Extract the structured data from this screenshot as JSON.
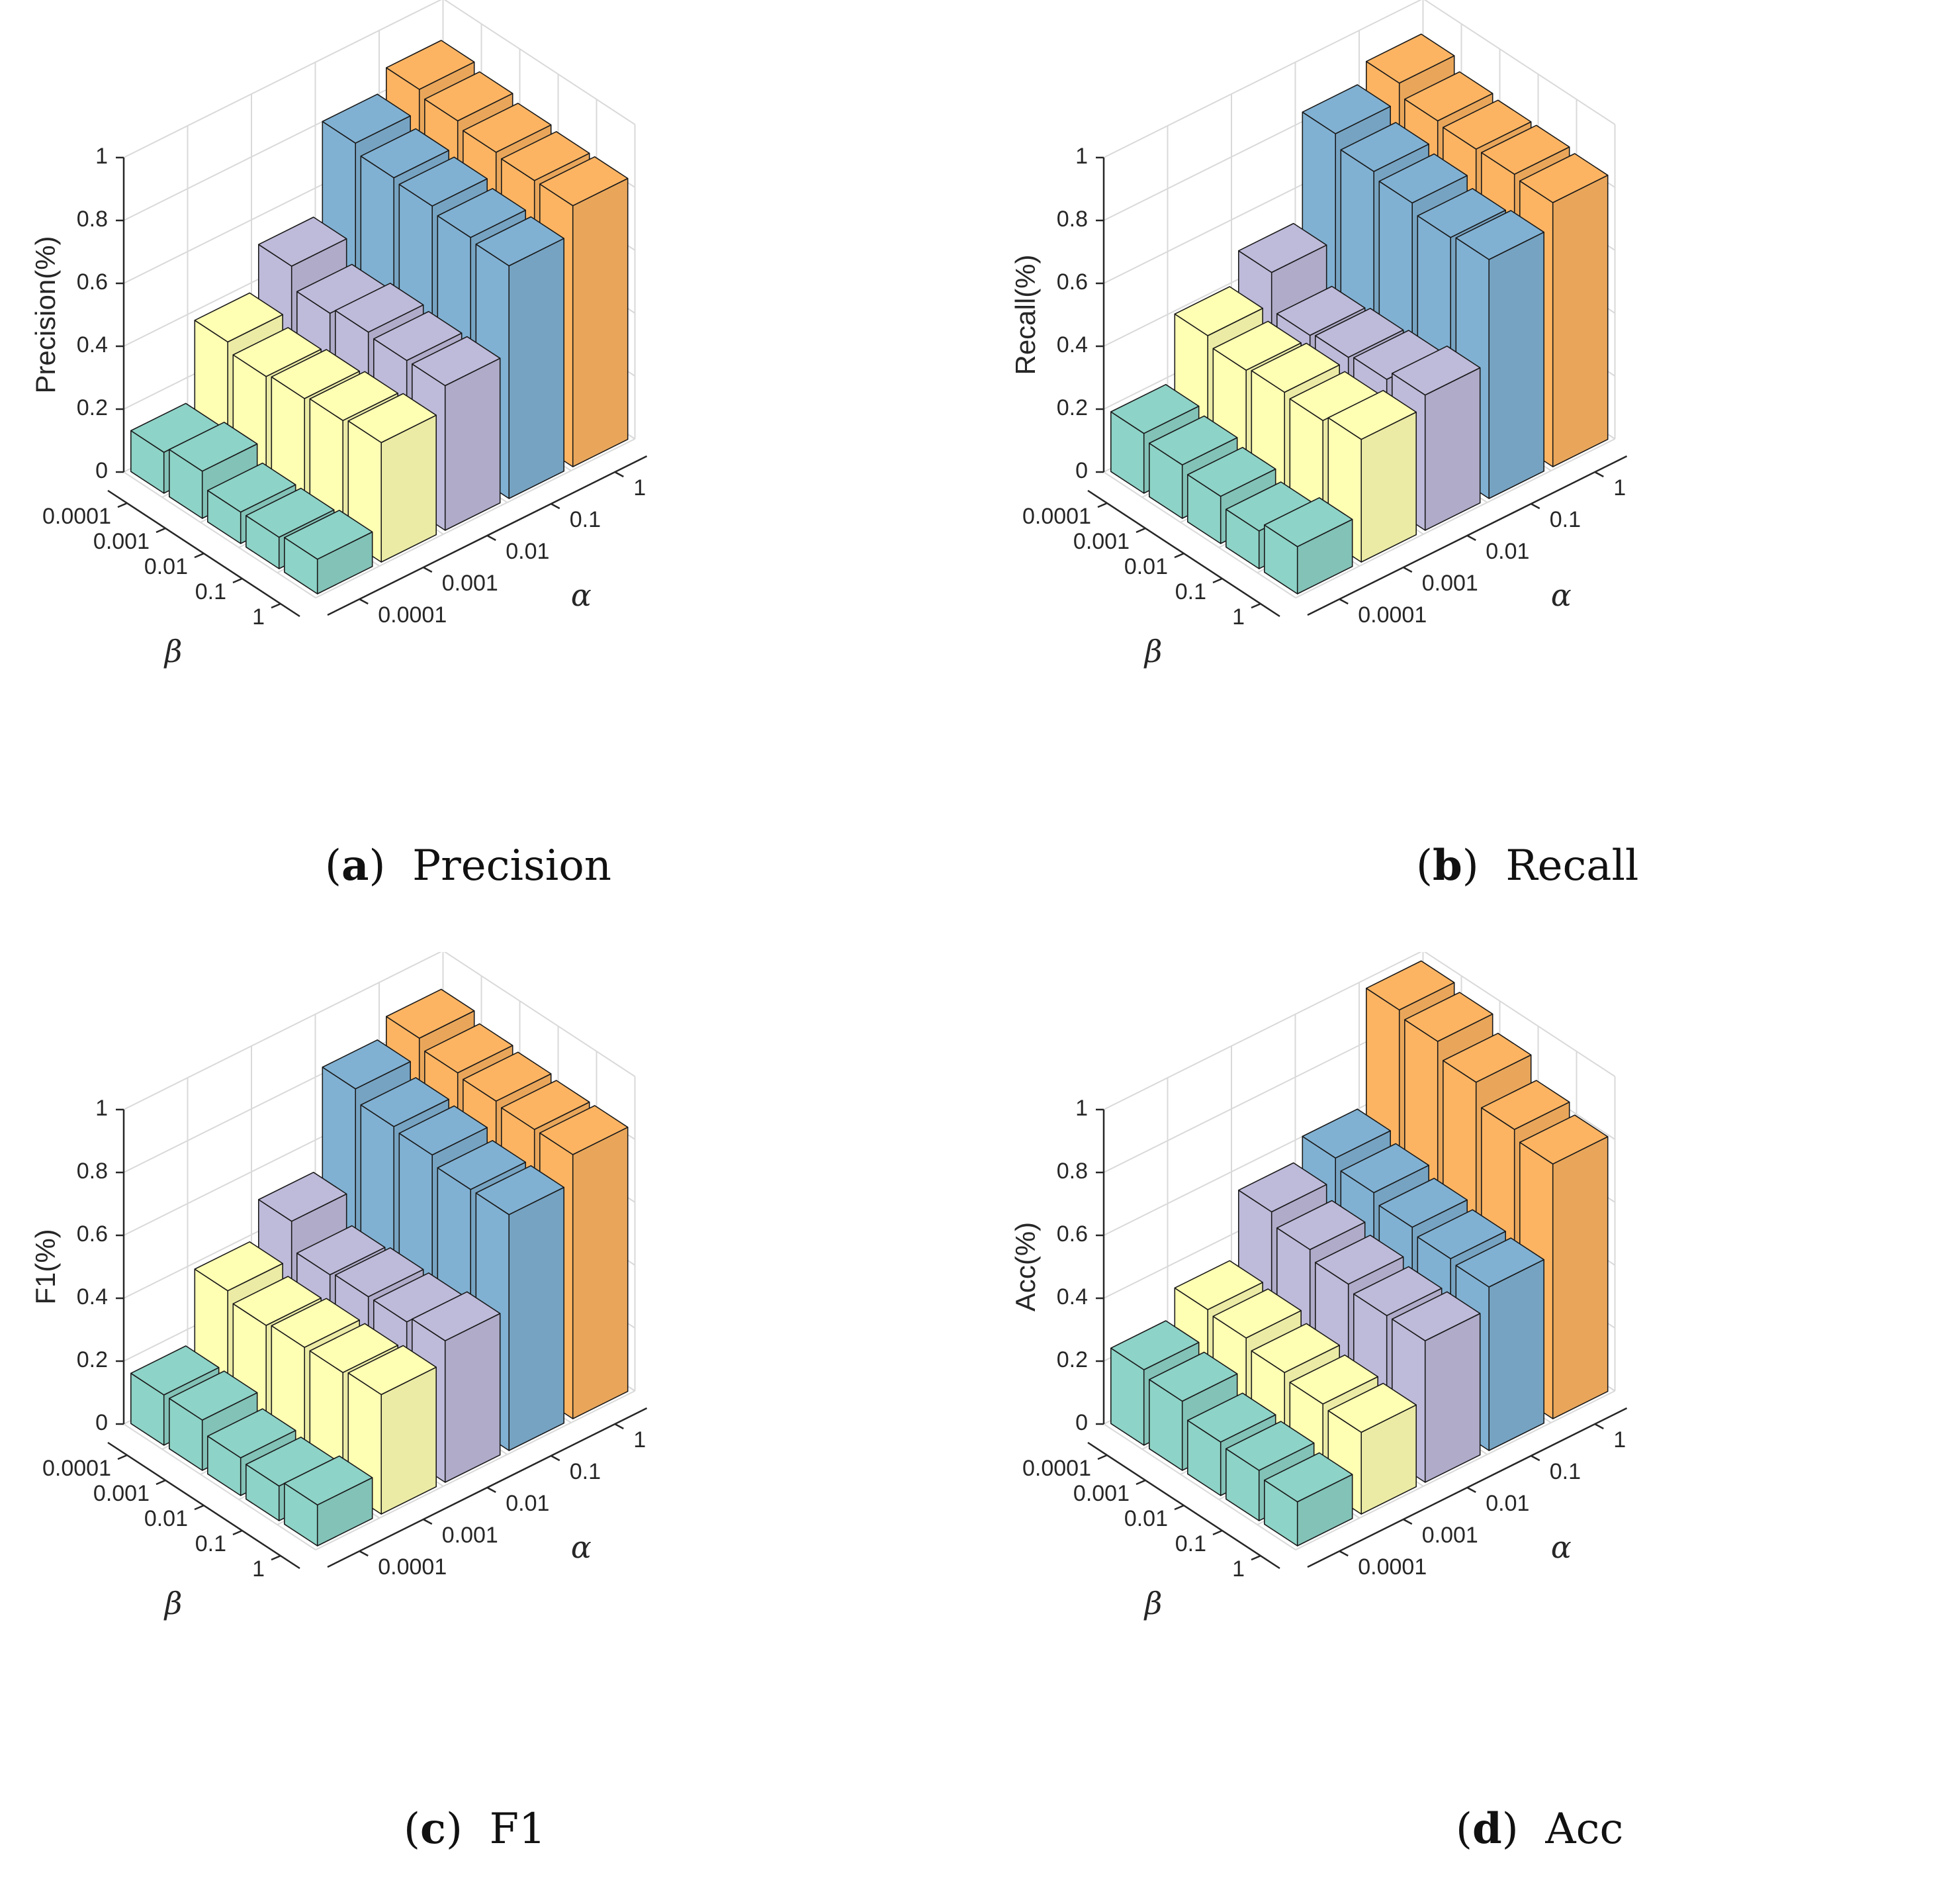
{
  "chart_data": [
    {
      "type": "bar3d",
      "caption_letter": "a",
      "caption_text": "Precision",
      "zlabel": "Precision(%)",
      "xlabel": "α",
      "ylabel": "β",
      "alpha_ticks": [
        "0.0001",
        "0.001",
        "0.01",
        "0.1",
        "1"
      ],
      "beta_ticks": [
        "0.0001",
        "0.001",
        "0.01",
        "0.1",
        "1"
      ],
      "z_ticks": [
        "0",
        "0.2",
        "0.4",
        "0.6",
        "0.8",
        "1"
      ],
      "zlim": [
        0,
        1
      ],
      "grid": true,
      "values_by_alpha": [
        [
          0.13,
          0.15,
          0.1,
          0.1,
          0.11
        ],
        [
          0.38,
          0.35,
          0.36,
          0.37,
          0.38
        ],
        [
          0.52,
          0.45,
          0.47,
          0.46,
          0.46
        ],
        [
          0.81,
          0.78,
          0.77,
          0.75,
          0.74
        ],
        [
          0.88,
          0.86,
          0.84,
          0.83,
          0.83
        ]
      ]
    },
    {
      "type": "bar3d",
      "caption_letter": "b",
      "caption_text": "Recall",
      "zlabel": "Recall(%)",
      "xlabel": "α",
      "ylabel": "β",
      "alpha_ticks": [
        "0.0001",
        "0.001",
        "0.01",
        "0.1",
        "1"
      ],
      "beta_ticks": [
        "0.0001",
        "0.001",
        "0.01",
        "0.1",
        "1"
      ],
      "z_ticks": [
        "0",
        "0.2",
        "0.4",
        "0.6",
        "0.8",
        "1"
      ],
      "zlim": [
        0,
        1
      ],
      "grid": true,
      "values_by_alpha": [
        [
          0.19,
          0.17,
          0.15,
          0.12,
          0.15
        ],
        [
          0.4,
          0.37,
          0.38,
          0.37,
          0.39
        ],
        [
          0.5,
          0.38,
          0.39,
          0.4,
          0.43
        ],
        [
          0.84,
          0.8,
          0.78,
          0.75,
          0.76
        ],
        [
          0.9,
          0.86,
          0.85,
          0.85,
          0.84
        ]
      ]
    },
    {
      "type": "bar3d",
      "caption_letter": "c",
      "caption_text": "F1",
      "zlabel": "F1(%)",
      "xlabel": "α",
      "ylabel": "β",
      "alpha_ticks": [
        "0.0001",
        "0.001",
        "0.01",
        "0.1",
        "1"
      ],
      "beta_ticks": [
        "0.0001",
        "0.001",
        "0.01",
        "0.1",
        "1"
      ],
      "z_ticks": [
        "0",
        "0.2",
        "0.4",
        "0.6",
        "0.8",
        "1"
      ],
      "zlim": [
        0,
        1
      ],
      "grid": true,
      "values_by_alpha": [
        [
          0.16,
          0.16,
          0.12,
          0.11,
          0.13
        ],
        [
          0.39,
          0.36,
          0.37,
          0.37,
          0.38
        ],
        [
          0.51,
          0.42,
          0.43,
          0.43,
          0.45
        ],
        [
          0.83,
          0.79,
          0.78,
          0.75,
          0.75
        ],
        [
          0.89,
          0.86,
          0.85,
          0.84,
          0.84
        ]
      ]
    },
    {
      "type": "bar3d",
      "caption_letter": "d",
      "caption_text": "Acc",
      "zlabel": "Acc(%)",
      "xlabel": "α",
      "ylabel": "β",
      "alpha_ticks": [
        "0.0001",
        "0.001",
        "0.01",
        "0.1",
        "1"
      ],
      "beta_ticks": [
        "0.0001",
        "0.001",
        "0.01",
        "0.1",
        "1"
      ],
      "z_ticks": [
        "0",
        "0.2",
        "0.4",
        "0.6",
        "0.8",
        "1"
      ],
      "zlim": [
        0,
        1
      ],
      "grid": true,
      "values_by_alpha": [
        [
          0.24,
          0.22,
          0.17,
          0.16,
          0.14
        ],
        [
          0.33,
          0.32,
          0.29,
          0.27,
          0.26
        ],
        [
          0.54,
          0.5,
          0.47,
          0.45,
          0.45
        ],
        [
          0.61,
          0.58,
          0.55,
          0.53,
          0.52
        ],
        [
          0.98,
          0.96,
          0.91,
          0.84,
          0.81
        ]
      ]
    }
  ],
  "colors": {
    "series": [
      "#8dd3c7",
      "#ffffb3",
      "#bebada",
      "#80b1d3",
      "#fdb462"
    ],
    "grid": "#d9d9d9",
    "axis": "#262626",
    "edge": "#1a1a1a"
  }
}
